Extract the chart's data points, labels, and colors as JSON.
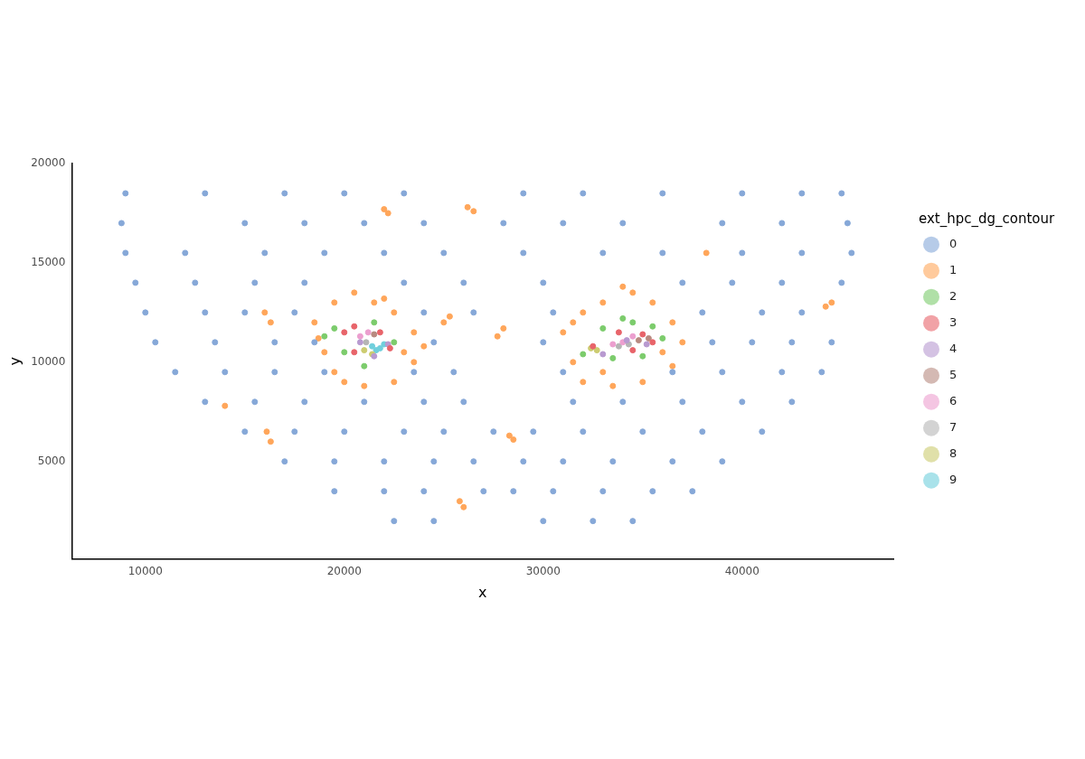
{
  "chart_data": {
    "type": "scatter",
    "xlabel": "x",
    "ylabel": "y",
    "legend_title": "ext_hpc_dg_contour",
    "legend": "right",
    "grid": false,
    "marker": "circle",
    "xlim": [
      6300,
      47600
    ],
    "xticks": [
      10000,
      20000,
      30000,
      40000
    ],
    "ylim": [
      100,
      20000
    ],
    "yticks": [
      5000,
      10000,
      15000,
      20000
    ],
    "series": [
      {
        "name": "0",
        "color": "#86a8d8",
        "x": [
          9000,
          13000,
          17000,
          20000,
          23000,
          29000,
          32000,
          36000,
          40000,
          43000,
          45000,
          8800,
          15000,
          18000,
          21000,
          24000,
          28000,
          31000,
          34000,
          39000,
          42000,
          45300,
          9000,
          12000,
          16000,
          19000,
          22000,
          25000,
          29000,
          33000,
          36000,
          40000,
          43000,
          45500,
          9500,
          12500,
          15500,
          18000,
          23000,
          26000,
          30000,
          37000,
          39500,
          42000,
          45000,
          10000,
          13000,
          15000,
          17500,
          24000,
          26500,
          30500,
          38000,
          41000,
          43000,
          10500,
          13500,
          16500,
          18500,
          24500,
          30000,
          38500,
          40500,
          42500,
          44500,
          11500,
          14000,
          16500,
          19000,
          23500,
          25500,
          31000,
          36500,
          39000,
          42000,
          44000,
          13000,
          15500,
          18000,
          21000,
          24000,
          26000,
          31500,
          34000,
          37000,
          40000,
          42500,
          15000,
          17500,
          20000,
          23000,
          25000,
          27500,
          29500,
          32000,
          35000,
          38000,
          41000,
          17000,
          19500,
          22000,
          24500,
          26500,
          29000,
          31000,
          33500,
          36500,
          39000,
          19500,
          22000,
          24000,
          27000,
          28500,
          30500,
          33000,
          35500,
          37500,
          22500,
          24500,
          30000,
          32500,
          34500
        ],
        "values": [
          18500,
          18500,
          18500,
          18500,
          18500,
          18500,
          18500,
          18500,
          18500,
          18500,
          18500,
          17000,
          17000,
          17000,
          17000,
          17000,
          17000,
          17000,
          17000,
          17000,
          17000,
          17000,
          15500,
          15500,
          15500,
          15500,
          15500,
          15500,
          15500,
          15500,
          15500,
          15500,
          15500,
          15500,
          14000,
          14000,
          14000,
          14000,
          14000,
          14000,
          14000,
          14000,
          14000,
          14000,
          14000,
          12500,
          12500,
          12500,
          12500,
          12500,
          12500,
          12500,
          12500,
          12500,
          12500,
          11000,
          11000,
          11000,
          11000,
          11000,
          11000,
          11000,
          11000,
          11000,
          11000,
          9500,
          9500,
          9500,
          9500,
          9500,
          9500,
          9500,
          9500,
          9500,
          9500,
          9500,
          8000,
          8000,
          8000,
          8000,
          8000,
          8000,
          8000,
          8000,
          8000,
          8000,
          8000,
          6500,
          6500,
          6500,
          6500,
          6500,
          6500,
          6500,
          6500,
          6500,
          6500,
          6500,
          5000,
          5000,
          5000,
          5000,
          5000,
          5000,
          5000,
          5000,
          5000,
          5000,
          3500,
          3500,
          3500,
          3500,
          3500,
          3500,
          3500,
          3500,
          3500,
          2000,
          2000,
          2000,
          2000,
          2000
        ]
      },
      {
        "name": "1",
        "color": "#ffa65a",
        "x": [
          18500,
          19000,
          19500,
          20500,
          21500,
          22500,
          23500,
          23500,
          22500,
          21000,
          19500,
          18700,
          20000,
          22000,
          23000,
          24000,
          31500,
          31000,
          32000,
          33000,
          34500,
          35500,
          36500,
          37000,
          36500,
          35000,
          33500,
          32000,
          34000,
          36000,
          31500,
          33000,
          22000,
          26500,
          16000,
          25000,
          28000,
          16300,
          14000,
          25800,
          28300,
          38200,
          44200,
          22200,
          26200,
          16300,
          25300,
          27700,
          16100,
          26000,
          28500,
          44500
        ],
        "values": [
          12000,
          10500,
          13000,
          13500,
          13000,
          12500,
          11500,
          10000,
          9000,
          8800,
          9500,
          11200,
          9000,
          13200,
          10500,
          10800,
          10000,
          11500,
          12500,
          13000,
          13500,
          13000,
          12000,
          11000,
          9800,
          9000,
          8800,
          9000,
          13800,
          10500,
          12000,
          9500,
          17700,
          17600,
          12500,
          12000,
          11700,
          6000,
          7800,
          3000,
          6300,
          15500,
          12800,
          17500,
          17800,
          12000,
          12300,
          11300,
          6500,
          2700,
          6100,
          13000
        ]
      },
      {
        "name": "2",
        "color": "#7ccc6c",
        "x": [
          19500,
          20000,
          21500,
          22500,
          21000,
          19000,
          33000,
          34500,
          35500,
          36000,
          35000,
          33500,
          32000,
          34000
        ],
        "values": [
          11700,
          10500,
          12000,
          11000,
          9800,
          11300,
          11700,
          12000,
          11800,
          11200,
          10300,
          10200,
          10400,
          12200
        ]
      },
      {
        "name": "3",
        "color": "#e8646a",
        "x": [
          20000,
          20500,
          21800,
          22300,
          20500,
          32500,
          33800,
          35000,
          35500,
          34500
        ],
        "values": [
          11500,
          10500,
          11500,
          10700,
          11800,
          10800,
          11500,
          11400,
          11000,
          10600
        ]
      },
      {
        "name": "4",
        "color": "#b89ad0",
        "x": [
          20800,
          21500,
          22200,
          33000,
          34200,
          35200
        ],
        "values": [
          11000,
          10300,
          10900,
          10400,
          11100,
          10900
        ]
      },
      {
        "name": "5",
        "color": "#b88a80",
        "x": [
          34800,
          35300,
          21500
        ],
        "values": [
          11100,
          11200,
          11400
        ]
      },
      {
        "name": "6",
        "color": "#ec9fcf",
        "x": [
          20800,
          21200,
          34000,
          34500,
          33500
        ],
        "values": [
          11300,
          11500,
          11000,
          11300,
          10900
        ]
      },
      {
        "name": "7",
        "color": "#b5b5b5",
        "x": [
          33800,
          34300,
          21100
        ],
        "values": [
          10800,
          10900,
          11000
        ]
      },
      {
        "name": "8",
        "color": "#cccc70",
        "x": [
          21000,
          21400,
          32700,
          32400
        ],
        "values": [
          10600,
          10400,
          10600,
          10700
        ]
      },
      {
        "name": "9",
        "color": "#6fcfdc",
        "x": [
          21400,
          21800,
          22000,
          21600
        ],
        "values": [
          10800,
          10700,
          10900,
          10600
        ]
      }
    ]
  }
}
